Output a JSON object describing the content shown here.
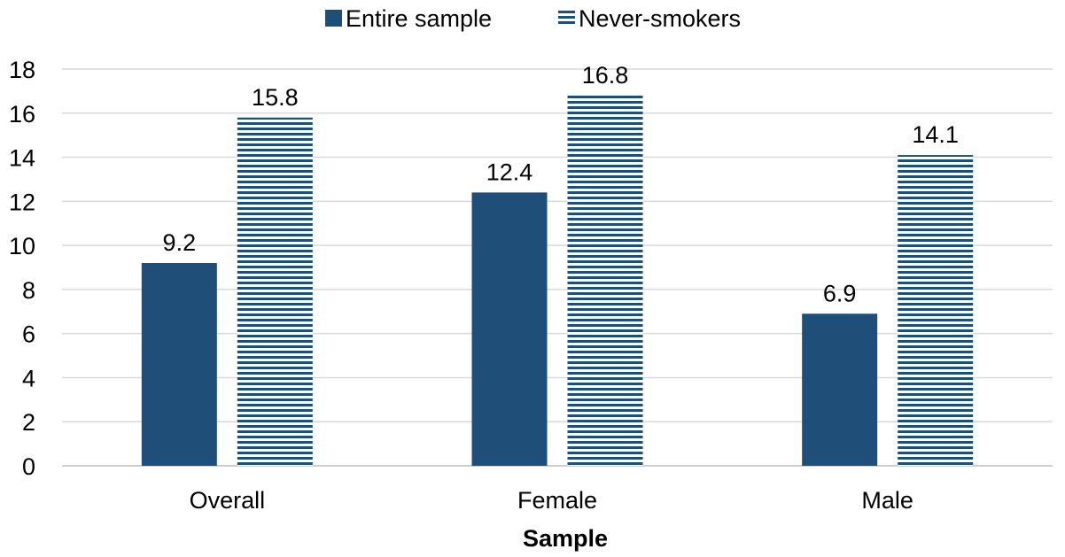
{
  "chart_data": {
    "type": "bar",
    "title": "",
    "xlabel": "Sample",
    "ylabel": "",
    "categories": [
      "Overall",
      "Female",
      "Male"
    ],
    "series": [
      {
        "name": "Entire sample",
        "values": [
          9.2,
          12.4,
          6.9
        ],
        "color": "#1f4e79",
        "pattern": "solid"
      },
      {
        "name": "Never-smokers",
        "values": [
          15.8,
          16.8,
          14.1
        ],
        "color": "#1f4e79",
        "pattern": "horizontal-stripes"
      }
    ],
    "data_labels": [
      [
        "9.2",
        "12.4",
        "6.9"
      ],
      [
        "15.8",
        "16.8",
        "14.1"
      ]
    ],
    "ylim": [
      0,
      18
    ],
    "yticks": [
      "0",
      "2",
      "4",
      "6",
      "8",
      "10",
      "12",
      "14",
      "16",
      "18"
    ],
    "grid": true,
    "legend_position": "top"
  }
}
